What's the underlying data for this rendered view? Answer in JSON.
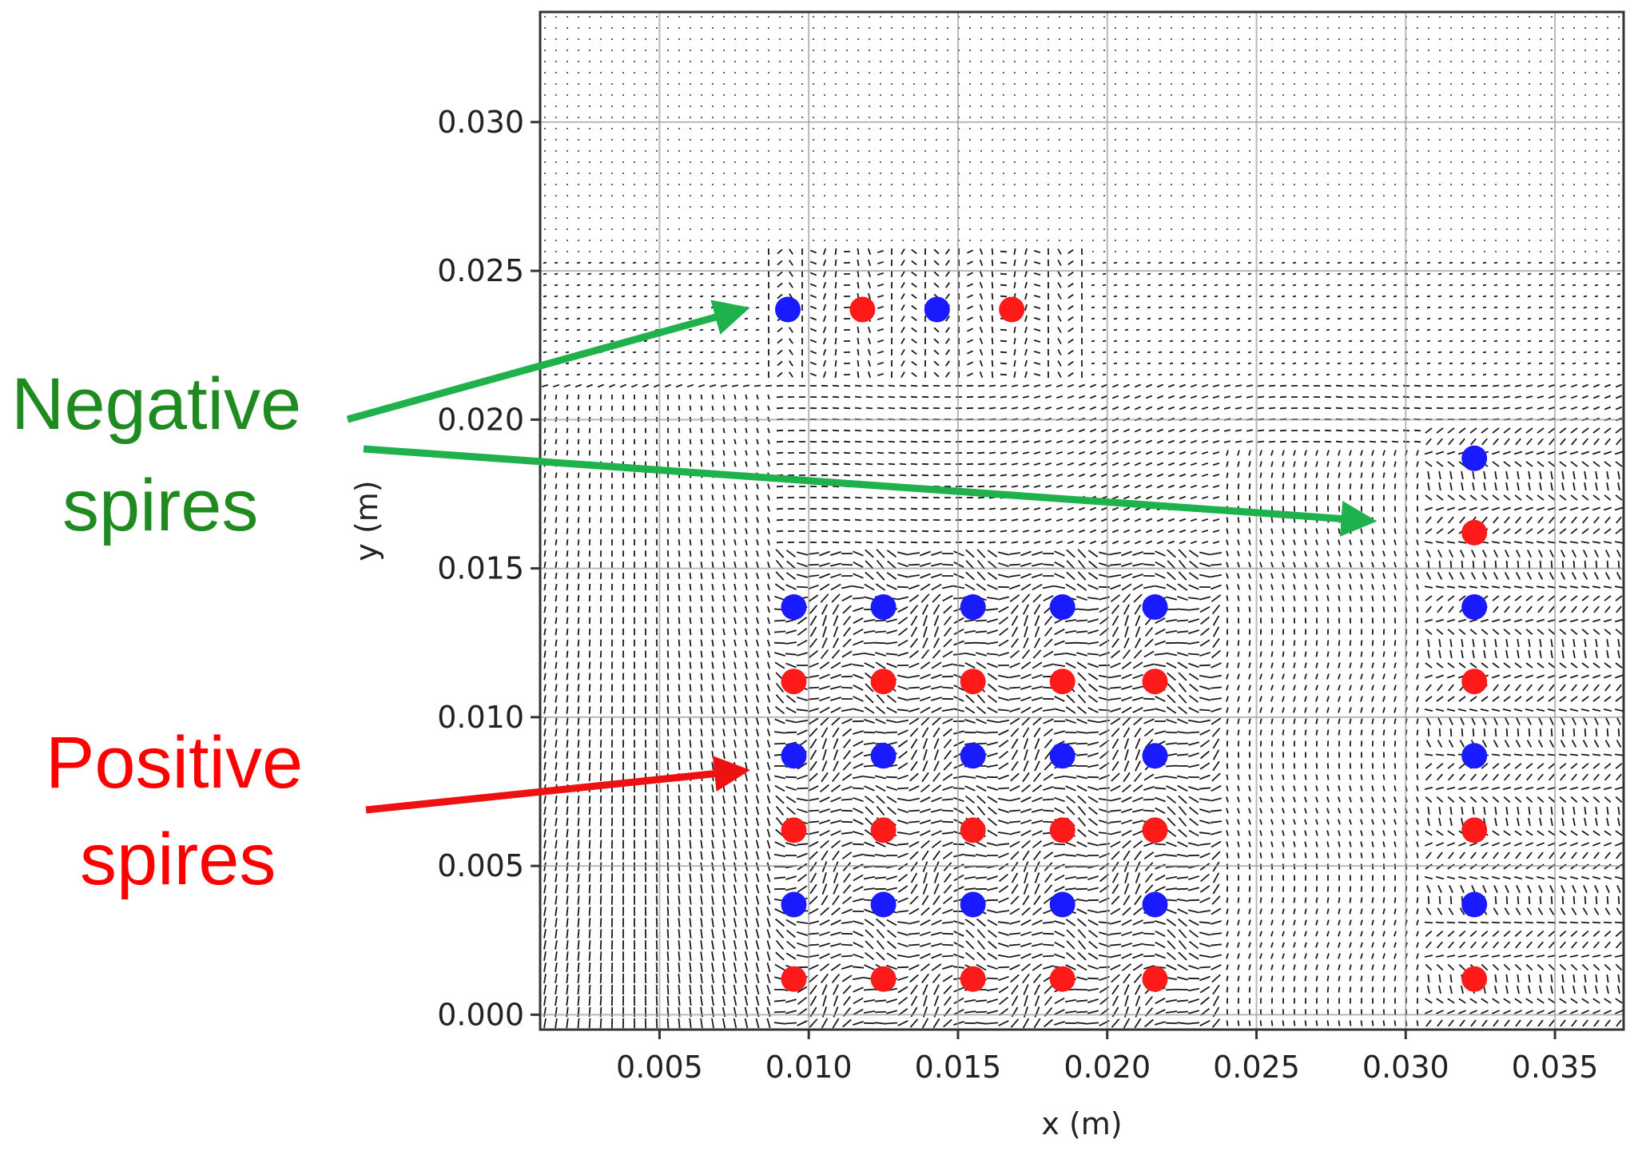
{
  "chart_data": {
    "type": "scatter",
    "title": "",
    "xlabel": "x (m)",
    "ylabel": "y (m)",
    "xlim": [
      0.001,
      0.0373
    ],
    "ylim": [
      -0.0005,
      0.0337
    ],
    "grid": true,
    "x_ticks": [
      "0.005",
      "0.010",
      "0.015",
      "0.020",
      "0.025",
      "0.030",
      "0.035"
    ],
    "x_tick_values": [
      0.005,
      0.01,
      0.015,
      0.02,
      0.025,
      0.03,
      0.035
    ],
    "y_ticks": [
      "0.000",
      "0.005",
      "0.010",
      "0.015",
      "0.020",
      "0.025",
      "0.030"
    ],
    "y_tick_values": [
      0.0,
      0.005,
      0.01,
      0.015,
      0.02,
      0.025,
      0.03
    ],
    "background": "dense velocity vector (quiver) field",
    "colors": {
      "negative": "#1a1aff",
      "positive": "#ff1a1a",
      "annotation_negative": "#1f8a1f",
      "arrow_negative": "#1fb14c",
      "annotation_positive": "#ff0000",
      "arrow_positive": "#ee1111"
    },
    "series": [
      {
        "key": "negative",
        "color": "#1a1aff",
        "points": [
          [
            0.0093,
            0.0237
          ],
          [
            0.0143,
            0.0237
          ],
          [
            0.0095,
            0.0137
          ],
          [
            0.0125,
            0.0137
          ],
          [
            0.0155,
            0.0137
          ],
          [
            0.0185,
            0.0137
          ],
          [
            0.0216,
            0.0137
          ],
          [
            0.0095,
            0.0087
          ],
          [
            0.0125,
            0.0087
          ],
          [
            0.0155,
            0.0087
          ],
          [
            0.0185,
            0.0087
          ],
          [
            0.0216,
            0.0087
          ],
          [
            0.0095,
            0.0037
          ],
          [
            0.0125,
            0.0037
          ],
          [
            0.0155,
            0.0037
          ],
          [
            0.0185,
            0.0037
          ],
          [
            0.0216,
            0.0037
          ],
          [
            0.0323,
            0.0187
          ],
          [
            0.0323,
            0.0137
          ],
          [
            0.0323,
            0.0087
          ],
          [
            0.0323,
            0.0037
          ]
        ]
      },
      {
        "key": "positive",
        "color": "#ff1a1a",
        "points": [
          [
            0.0118,
            0.0237
          ],
          [
            0.0168,
            0.0237
          ],
          [
            0.0095,
            0.0112
          ],
          [
            0.0125,
            0.0112
          ],
          [
            0.0155,
            0.0112
          ],
          [
            0.0185,
            0.0112
          ],
          [
            0.0216,
            0.0112
          ],
          [
            0.0095,
            0.0062
          ],
          [
            0.0125,
            0.0062
          ],
          [
            0.0155,
            0.0062
          ],
          [
            0.0185,
            0.0062
          ],
          [
            0.0216,
            0.0062
          ],
          [
            0.0095,
            0.0012
          ],
          [
            0.0125,
            0.0012
          ],
          [
            0.0155,
            0.0012
          ],
          [
            0.0185,
            0.0012
          ],
          [
            0.0216,
            0.0012
          ],
          [
            0.0323,
            0.0162
          ],
          [
            0.0323,
            0.0112
          ],
          [
            0.0323,
            0.0062
          ],
          [
            0.0323,
            0.0012
          ]
        ]
      }
    ],
    "annotations": {
      "negative_line1": "Negative",
      "negative_line2": "spires",
      "positive_line1": "Positive",
      "positive_line2": "spires"
    },
    "annotation_arrows": [
      {
        "key": "neg-arrow-1",
        "to": [
          0.0078,
          0.0237
        ],
        "color": "#1fb14c"
      },
      {
        "key": "neg-arrow-2",
        "to": [
          0.0288,
          0.0166
        ],
        "color": "#1fb14c"
      },
      {
        "key": "pos-arrow",
        "to": [
          0.0078,
          0.0082
        ],
        "color": "#ee1111"
      }
    ]
  }
}
